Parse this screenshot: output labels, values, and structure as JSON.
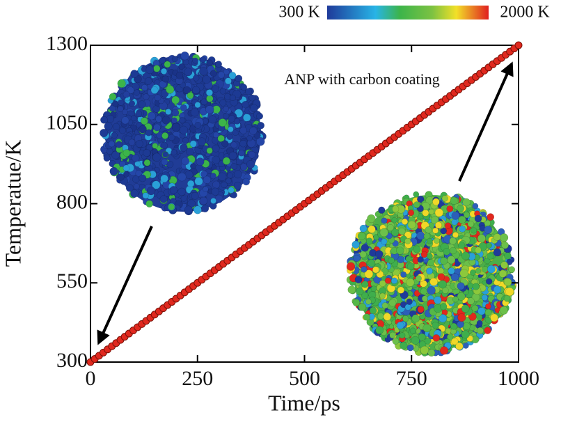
{
  "chart_data": {
    "type": "scatter",
    "x_label": "Time/ps",
    "y_label": "Temperatue/K",
    "annotation": "ANP with carbon coating",
    "colorbar": {
      "min_label": "300 K",
      "max_label": "2000 K"
    },
    "color": "#e0281e",
    "xlim": [
      0,
      1000
    ],
    "xticks": [
      0,
      250,
      500,
      750,
      1000
    ],
    "ylim": [
      300,
      1300
    ],
    "yticks": [
      300,
      550,
      800,
      1050,
      1300
    ],
    "x": [
      0,
      10,
      20,
      30,
      40,
      50,
      60,
      70,
      80,
      90,
      100,
      110,
      120,
      130,
      140,
      150,
      160,
      170,
      180,
      190,
      200,
      210,
      220,
      230,
      240,
      250,
      260,
      270,
      280,
      290,
      300,
      310,
      320,
      330,
      340,
      350,
      360,
      370,
      380,
      390,
      400,
      410,
      420,
      430,
      440,
      450,
      460,
      470,
      480,
      490,
      500,
      510,
      520,
      530,
      540,
      550,
      560,
      570,
      580,
      590,
      600,
      610,
      620,
      630,
      640,
      650,
      660,
      670,
      680,
      690,
      700,
      710,
      720,
      730,
      740,
      750,
      760,
      770,
      780,
      790,
      800,
      810,
      820,
      830,
      840,
      850,
      860,
      870,
      880,
      890,
      900,
      910,
      920,
      930,
      940,
      950,
      960,
      970,
      980,
      990,
      1000
    ],
    "values": [
      300,
      310,
      320,
      330,
      340,
      350,
      360,
      370,
      380,
      390,
      400,
      410,
      420,
      430,
      440,
      450,
      460,
      470,
      480,
      490,
      500,
      510,
      520,
      530,
      540,
      550,
      560,
      570,
      580,
      590,
      600,
      610,
      620,
      630,
      640,
      650,
      660,
      670,
      680,
      690,
      700,
      710,
      720,
      730,
      740,
      750,
      760,
      770,
      780,
      790,
      800,
      810,
      820,
      830,
      840,
      850,
      860,
      870,
      880,
      890,
      900,
      910,
      920,
      930,
      940,
      950,
      960,
      970,
      980,
      990,
      1000,
      1010,
      1020,
      1030,
      1040,
      1050,
      1060,
      1070,
      1080,
      1090,
      1100,
      1110,
      1120,
      1130,
      1140,
      1150,
      1160,
      1170,
      1180,
      1190,
      1200,
      1210,
      1220,
      1230,
      1240,
      1250,
      1260,
      1270,
      1280,
      1290,
      1300
    ]
  }
}
